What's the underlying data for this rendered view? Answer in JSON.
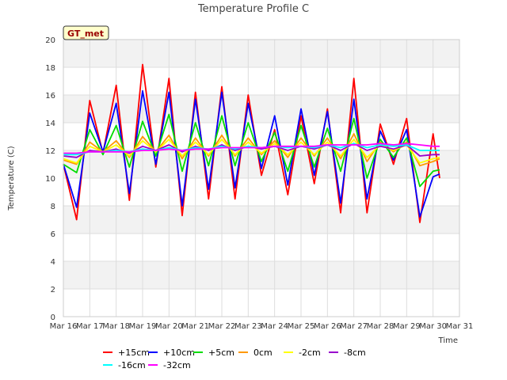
{
  "chart_data": {
    "type": "line",
    "title": "Temperature Profile C",
    "xlabel": "Time",
    "ylabel": "Temperature (C)",
    "site_label": "GT_met",
    "xlim": [
      "Mar 16",
      "Mar 31"
    ],
    "ylim": [
      0,
      20
    ],
    "x_ticks": [
      "Mar 16",
      "Mar 17",
      "Mar 18",
      "Mar 19",
      "Mar 20",
      "Mar 21",
      "Mar 22",
      "Mar 23",
      "Mar 24",
      "Mar 25",
      "Mar 26",
      "Mar 27",
      "Mar 28",
      "Mar 29",
      "Mar 30",
      "Mar 31"
    ],
    "y_ticks": [
      0,
      2,
      4,
      6,
      8,
      10,
      12,
      14,
      16,
      18,
      20
    ],
    "grid": true,
    "background_bands": [
      "#f2f2f2",
      "#ffffff"
    ],
    "legend_position": "bottom",
    "x": [
      "Mar 16",
      "Mar 16.5",
      "Mar 17",
      "Mar 17.5",
      "Mar 18",
      "Mar 18.5",
      "Mar 19",
      "Mar 19.5",
      "Mar 20",
      "Mar 20.5",
      "Mar 21",
      "Mar 21.5",
      "Mar 22",
      "Mar 22.5",
      "Mar 23",
      "Mar 23.5",
      "Mar 24",
      "Mar 24.5",
      "Mar 25",
      "Mar 25.5",
      "Mar 26",
      "Mar 26.5",
      "Mar 27",
      "Mar 27.5",
      "Mar 28",
      "Mar 28.5",
      "Mar 29",
      "Mar 29.5",
      "Mar 30",
      "Mar 30.25"
    ],
    "series": [
      {
        "name": "+15cm",
        "color": "#ff0000",
        "values": [
          11.0,
          7.0,
          15.6,
          11.8,
          16.7,
          8.4,
          18.2,
          10.8,
          17.2,
          7.3,
          16.2,
          8.5,
          16.6,
          8.5,
          16.0,
          10.2,
          13.5,
          8.8,
          14.5,
          9.6,
          15.0,
          7.5,
          17.2,
          7.5,
          13.9,
          11.0,
          14.3,
          6.8,
          13.2,
          10.0
        ]
      },
      {
        "name": "+10cm",
        "color": "#0000ff",
        "values": [
          11.0,
          7.9,
          14.7,
          11.9,
          15.4,
          8.9,
          16.3,
          11.0,
          16.2,
          8.0,
          15.7,
          9.2,
          16.2,
          9.3,
          15.4,
          10.7,
          14.5,
          9.5,
          15.0,
          10.2,
          14.8,
          8.2,
          15.7,
          8.5,
          13.4,
          11.3,
          13.5,
          7.2,
          10.1,
          10.3
        ]
      },
      {
        "name": "+5cm",
        "color": "#00dd00",
        "values": [
          11.0,
          10.4,
          13.5,
          11.7,
          13.8,
          10.8,
          14.1,
          11.6,
          14.6,
          10.5,
          14.0,
          10.9,
          14.5,
          10.9,
          14.0,
          11.2,
          13.3,
          10.5,
          13.8,
          10.8,
          13.6,
          10.5,
          14.3,
          10.0,
          12.8,
          11.5,
          12.9,
          9.4,
          10.5,
          10.6
        ]
      },
      {
        "name": "0cm",
        "color": "#ff9900",
        "values": [
          11.3,
          11.0,
          12.6,
          11.9,
          12.7,
          11.5,
          13.0,
          11.9,
          13.1,
          11.4,
          12.9,
          11.6,
          13.1,
          11.6,
          12.9,
          11.7,
          12.7,
          11.5,
          12.9,
          11.6,
          12.9,
          11.4,
          13.2,
          11.2,
          12.6,
          11.9,
          12.6,
          10.9,
          11.2,
          11.4
        ]
      },
      {
        "name": "-2cm",
        "color": "#ffff00",
        "values": [
          11.4,
          11.1,
          12.3,
          11.9,
          12.4,
          11.6,
          12.7,
          11.9,
          12.8,
          11.6,
          12.6,
          11.7,
          12.8,
          11.7,
          12.6,
          11.8,
          12.5,
          11.7,
          12.6,
          11.7,
          12.6,
          11.6,
          12.8,
          11.5,
          12.4,
          12.0,
          12.4,
          11.1,
          11.4,
          11.5
        ]
      },
      {
        "name": "-8cm",
        "color": "#9900cc",
        "values": [
          11.6,
          11.5,
          12.0,
          11.9,
          12.1,
          11.8,
          12.3,
          12.0,
          12.4,
          11.9,
          12.3,
          12.0,
          12.4,
          12.0,
          12.3,
          12.1,
          12.3,
          12.0,
          12.3,
          12.1,
          12.4,
          12.0,
          12.5,
          12.0,
          12.3,
          12.1,
          12.4,
          11.6,
          11.7,
          11.7
        ]
      },
      {
        "name": "-16cm",
        "color": "#00ffff",
        "values": [
          11.7,
          11.7,
          11.9,
          11.9,
          12.0,
          11.9,
          12.1,
          12.0,
          12.2,
          12.0,
          12.2,
          12.1,
          12.3,
          12.1,
          12.3,
          12.2,
          12.3,
          12.2,
          12.3,
          12.2,
          12.4,
          12.2,
          12.5,
          12.2,
          12.4,
          12.3,
          12.4,
          12.0,
          12.0,
          12.0
        ]
      },
      {
        "name": "-32cm",
        "color": "#ff00ff",
        "values": [
          11.8,
          11.8,
          11.9,
          11.9,
          11.9,
          11.9,
          12.0,
          12.0,
          12.1,
          12.0,
          12.1,
          12.1,
          12.2,
          12.2,
          12.2,
          12.2,
          12.3,
          12.3,
          12.3,
          12.3,
          12.4,
          12.4,
          12.4,
          12.4,
          12.5,
          12.4,
          12.5,
          12.4,
          12.3,
          12.3
        ]
      }
    ]
  }
}
